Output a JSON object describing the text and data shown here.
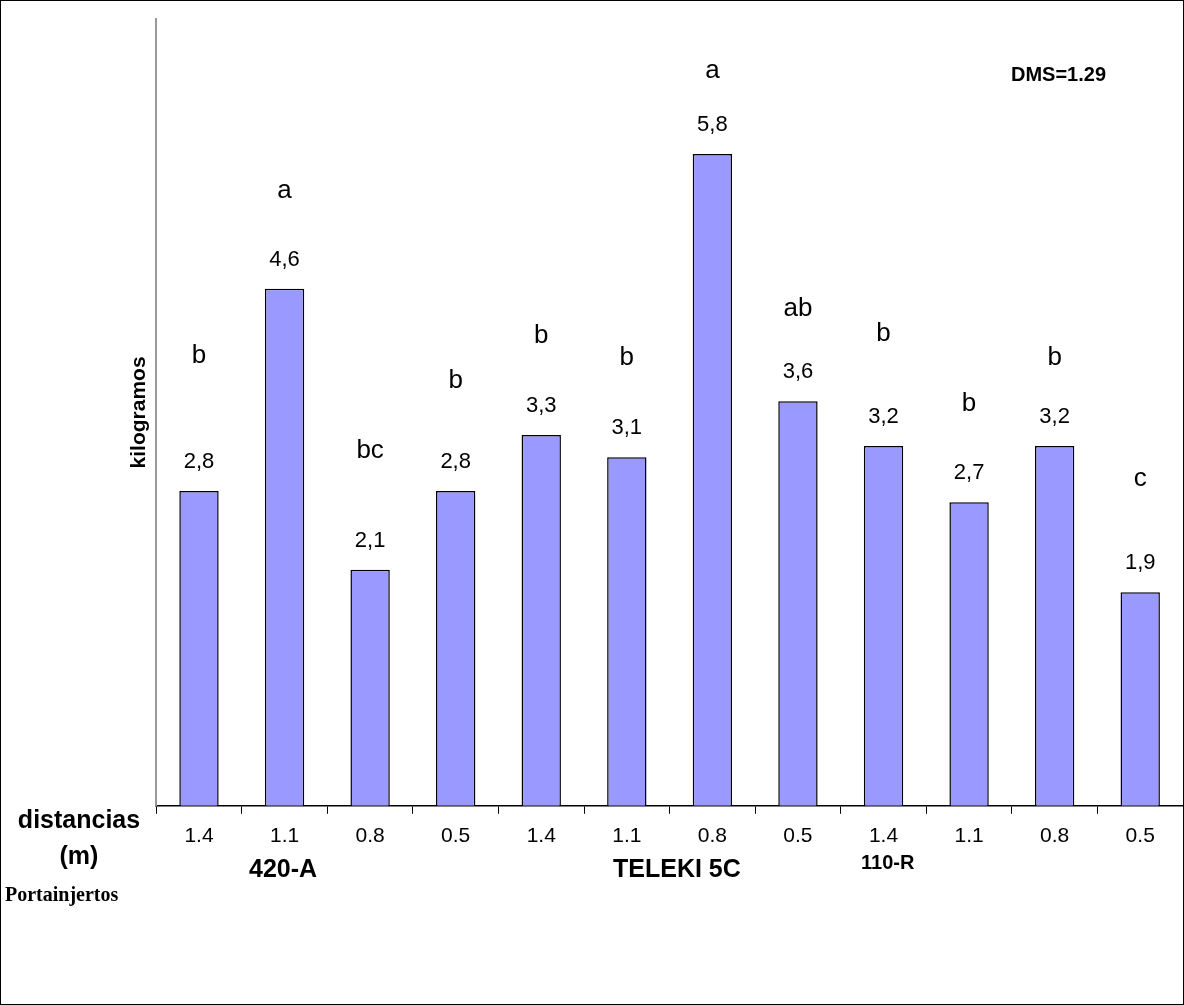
{
  "chart_data": {
    "type": "bar",
    "ylabel": "kilogramos",
    "xlabel": "distancias (m)",
    "categories": [
      "1.4",
      "1.1",
      "0.8",
      "0.5",
      "1.4",
      "1.1",
      "0.8",
      "0.5",
      "1.4",
      "1.1",
      "0.8",
      "0.5"
    ],
    "values": [
      2.8,
      4.6,
      2.1,
      2.8,
      3.3,
      3.1,
      5.8,
      3.6,
      3.2,
      2.7,
      3.2,
      1.9
    ],
    "value_labels": [
      "2,8",
      "4,6",
      "2,1",
      "2,8",
      "3,3",
      "3,1",
      "5,8",
      "3,6",
      "3,2",
      "2,7",
      "3,2",
      "1,9"
    ],
    "color": "#9999ff",
    "ylim": [
      0,
      7
    ],
    "tick_labels": "x",
    "grid": false,
    "legend": false,
    "annotations": [
      "b",
      "a",
      "bc",
      "b",
      "b",
      "b",
      "a",
      "ab",
      "b",
      "b",
      "b",
      "c",
      "DMS=1.29",
      "420-A",
      "TELEKI 5C",
      "110-R",
      "Portainjertos"
    ]
  }
}
